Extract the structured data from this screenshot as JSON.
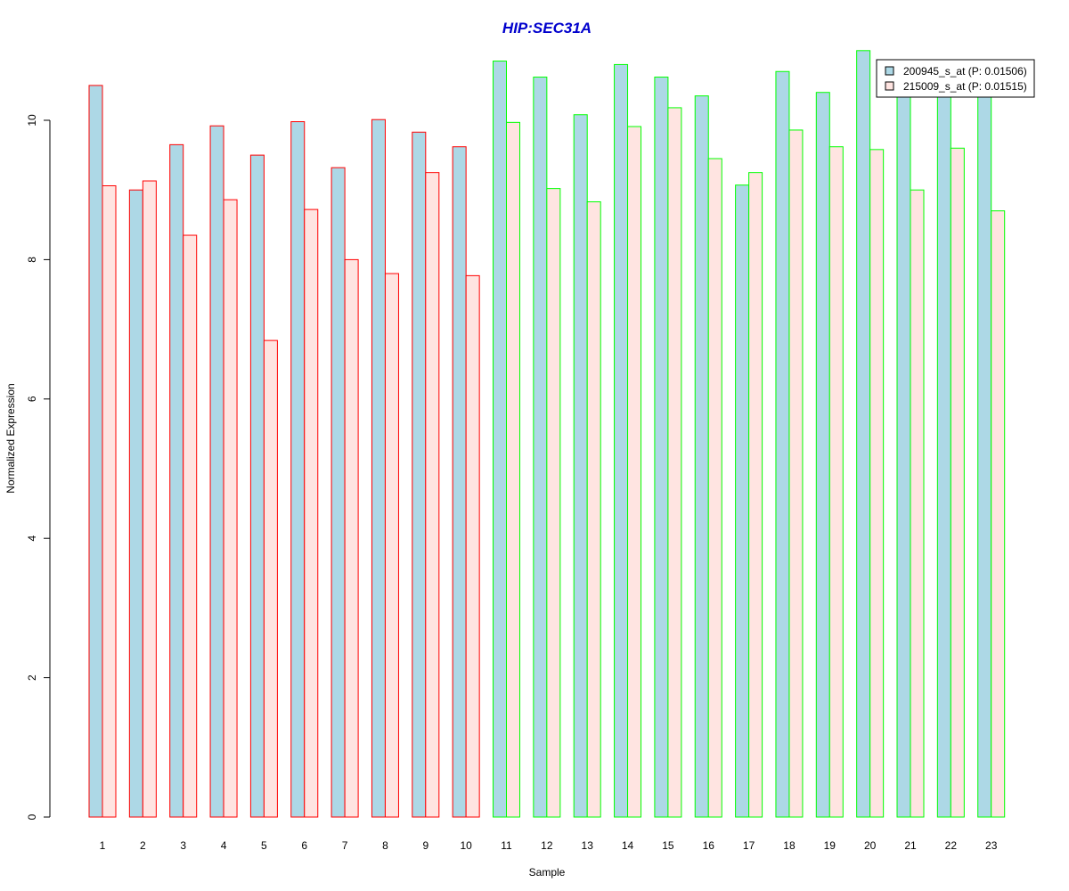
{
  "chart_data": {
    "type": "bar",
    "title": "HIP:SEC31A",
    "xlabel": "Sample",
    "ylabel": "Normalized Expression",
    "categories": [
      "1",
      "2",
      "3",
      "4",
      "5",
      "6",
      "7",
      "8",
      "9",
      "10",
      "11",
      "12",
      "13",
      "14",
      "15",
      "16",
      "17",
      "18",
      "19",
      "20",
      "21",
      "22",
      "23"
    ],
    "ylim": [
      0,
      11
    ],
    "y_ticks": [
      0,
      2,
      4,
      6,
      8,
      10
    ],
    "grid": false,
    "legend_position": "top-right",
    "series": [
      {
        "name": "200945_s_at (P: 0.01506)",
        "fill": "#add8e6",
        "values": [
          10.5,
          9.0,
          9.65,
          9.92,
          9.5,
          9.98,
          9.32,
          10.01,
          9.83,
          9.62,
          10.85,
          10.62,
          10.08,
          10.8,
          10.62,
          10.35,
          9.07,
          10.7,
          10.4,
          11.0,
          10.35,
          10.35,
          10.35
        ]
      },
      {
        "name": "215009_s_at (P: 0.01515)",
        "fill": "#ffe4e1",
        "values": [
          9.06,
          9.13,
          8.35,
          8.86,
          6.84,
          8.72,
          8.0,
          7.8,
          9.25,
          7.77,
          9.97,
          9.02,
          8.83,
          9.91,
          10.18,
          9.45,
          9.25,
          9.86,
          9.62,
          9.58,
          9.0,
          9.6,
          8.7
        ]
      }
    ],
    "group_colors": {
      "group_1": "#ff0000",
      "group_2": "#00ff00"
    },
    "sample_group": [
      1,
      1,
      1,
      1,
      1,
      1,
      1,
      1,
      1,
      1,
      2,
      2,
      2,
      2,
      2,
      2,
      2,
      2,
      2,
      2,
      2,
      2,
      2
    ],
    "title_color": "#0000cd"
  }
}
